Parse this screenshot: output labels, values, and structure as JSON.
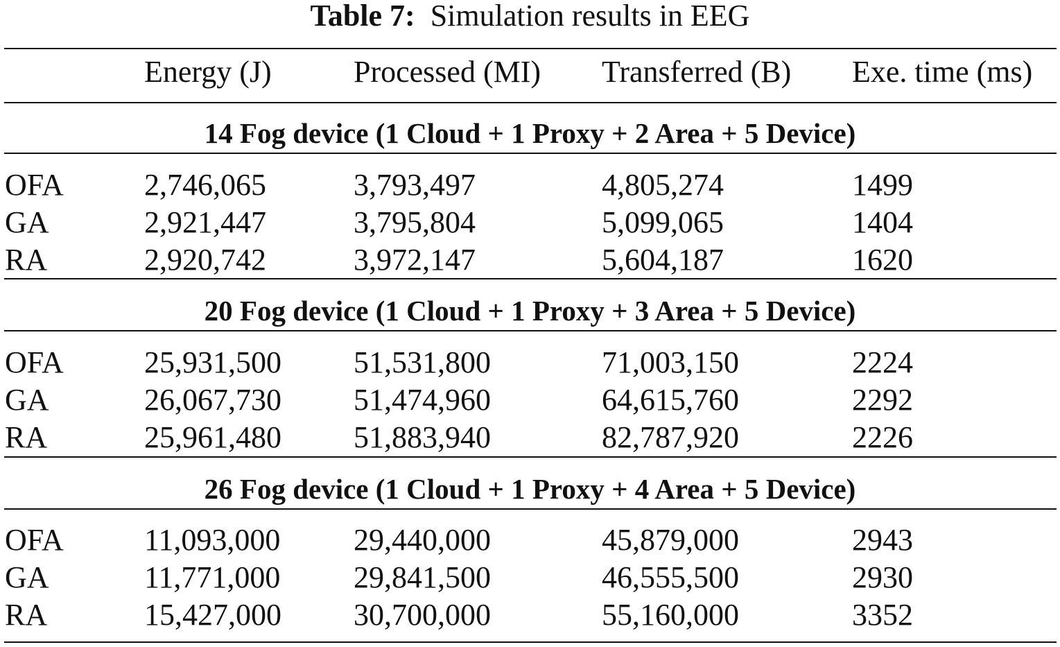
{
  "caption": {
    "label": "Table 7:",
    "text": "Simulation results in EEG"
  },
  "columns": [
    "",
    "Energy (J)",
    "Processed (MI)",
    "Transferred (B)",
    "Exe. time (ms)"
  ],
  "groups": [
    {
      "title": "14 Fog device (1 Cloud + 1 Proxy + 2 Area + 5 Device)",
      "rows": [
        [
          "OFA",
          "2,746,065",
          "3,793,497",
          "4,805,274",
          "1499"
        ],
        [
          "GA",
          "2,921,447",
          "3,795,804",
          "5,099,065",
          "1404"
        ],
        [
          "RA",
          "2,920,742",
          "3,972,147",
          "5,604,187",
          "1620"
        ]
      ]
    },
    {
      "title": "20 Fog device (1 Cloud + 1 Proxy + 3 Area + 5 Device)",
      "rows": [
        [
          "OFA",
          "25,931,500",
          "51,531,800",
          "71,003,150",
          "2224"
        ],
        [
          "GA",
          "26,067,730",
          "51,474,960",
          "64,615,760",
          "2292"
        ],
        [
          "RA",
          "25,961,480",
          "51,883,940",
          "82,787,920",
          "2226"
        ]
      ]
    },
    {
      "title": "26 Fog device (1 Cloud + 1 Proxy + 4 Area + 5 Device)",
      "rows": [
        [
          "OFA",
          "11,093,000",
          "29,440,000",
          "45,879,000",
          "2943"
        ],
        [
          "GA",
          "11,771,000",
          "29,841,500",
          "46,555,500",
          "2930"
        ],
        [
          "RA",
          "15,427,000",
          "30,700,000",
          "55,160,000",
          "3352"
        ]
      ]
    }
  ]
}
